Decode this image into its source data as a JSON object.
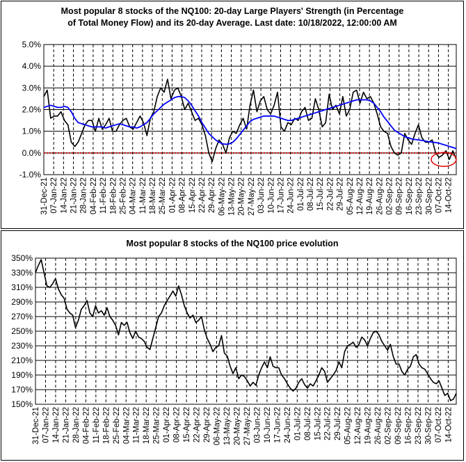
{
  "chart_data": [
    {
      "type": "line",
      "title_line1": "Most popular 8 stocks of the NQ100: 20-day Large Players' Strength (in Percentage",
      "title_line2": "of Total Money Flow) and its 20-day Average. Last date: 10/18/2022, 12:00:00 AM",
      "y_ticks": [
        "5.0%",
        "4.0%",
        "3.0%",
        "2.0%",
        "1.0%",
        "0.0%",
        "-1.0%"
      ],
      "ylim": [
        -1.0,
        5.0
      ],
      "x_ticks": [
        "31-Dec-21",
        "07-Jan-22",
        "14-Jan-22",
        "21-Jan-22",
        "28-Jan-22",
        "04-Feb-22",
        "11-Feb-22",
        "18-Feb-22",
        "25-Feb-22",
        "04-Mar-22",
        "11-Mar-22",
        "18-Mar-22",
        "25-Mar-22",
        "01-Apr-22",
        "08-Apr-22",
        "15-Apr-22",
        "22-Apr-22",
        "29-Apr-22",
        "06-May-22",
        "13-May-22",
        "20-May-22",
        "27-May-22",
        "03-Jun-22",
        "10-Jun-22",
        "17-Jun-22",
        "24-Jun-22",
        "01-Jul-22",
        "08-Jul-22",
        "15-Jul-22",
        "22-Jul-22",
        "29-Jul-22",
        "05-Aug-22",
        "12-Aug-22",
        "19-Aug-22",
        "26-Aug-22",
        "02-Sep-22",
        "09-Sep-22",
        "16-Sep-22",
        "23-Sep-22",
        "30-Sep-22",
        "07-Oct-22",
        "14-Oct-22"
      ],
      "grid": "vertical-dashed, horizontal-solid",
      "highlight_line": {
        "value": 0.0,
        "color": "#cc0000"
      },
      "annotation": {
        "type": "red-ellipse",
        "around": "last values"
      },
      "series": [
        {
          "color": "#000000",
          "values": [
            2.6,
            2.9,
            1.6,
            1.7,
            1.7,
            1.9,
            1.5,
            1.3,
            0.5,
            0.3,
            0.5,
            0.9,
            1.3,
            1.5,
            1.5,
            1.0,
            1.6,
            1.1,
            1.3,
            1.6,
            1.0,
            1.0,
            1.3,
            1.5,
            1.6,
            1.2,
            1.1,
            1.4,
            1.7,
            1.4,
            0.8,
            1.6,
            1.9,
            2.6,
            3.0,
            2.8,
            3.4,
            2.5,
            2.9,
            3.0,
            2.6,
            2.0,
            2.3,
            1.9,
            1.5,
            1.6,
            1.3,
            0.8,
            0.0,
            -0.4,
            0.2,
            0.6,
            0.4,
            0.0,
            0.7,
            1.0,
            0.9,
            1.3,
            1.6,
            1.1,
            2.2,
            2.9,
            1.9,
            2.4,
            2.6,
            2.0,
            1.8,
            2.2,
            2.8,
            1.2,
            1.0,
            1.4,
            1.3,
            1.6,
            1.5,
            1.9,
            2.1,
            1.5,
            1.6,
            2.5,
            2.0,
            1.2,
            1.4,
            2.7,
            2.0,
            2.2,
            1.8,
            2.6,
            1.7,
            2.0,
            2.8,
            2.9,
            2.3,
            2.8,
            2.5,
            2.6,
            2.3,
            1.8,
            1.2,
            1.0,
            0.9,
            0.3,
            0.0,
            -0.1,
            0.0,
            0.9,
            0.6,
            0.4,
            0.9,
            1.3,
            0.7,
            0.5,
            0.5,
            0.6,
            0.0,
            -0.2,
            -0.1,
            0.1,
            -0.3,
            0.1,
            -0.3
          ]
        },
        {
          "color": "#0000ff",
          "values": [
            2.1,
            2.15,
            2.2,
            2.15,
            2.1,
            2.1,
            2.15,
            2.1,
            1.9,
            1.6,
            1.4,
            1.35,
            1.3,
            1.25,
            1.2,
            1.2,
            1.2,
            1.2,
            1.15,
            1.2,
            1.25,
            1.3,
            1.35,
            1.3,
            1.25,
            1.2,
            1.2,
            1.15,
            1.2,
            1.3,
            1.4,
            1.6,
            1.8,
            1.95,
            2.1,
            2.25,
            2.35,
            2.45,
            2.55,
            2.6,
            2.6,
            2.55,
            2.4,
            2.2,
            1.95,
            1.7,
            1.4,
            1.15,
            0.9,
            0.75,
            0.6,
            0.5,
            0.42,
            0.4,
            0.42,
            0.5,
            0.65,
            0.85,
            1.05,
            1.25,
            1.45,
            1.55,
            1.6,
            1.65,
            1.7,
            1.7,
            1.7,
            1.7,
            1.65,
            1.6,
            1.55,
            1.5,
            1.5,
            1.55,
            1.6,
            1.65,
            1.7,
            1.75,
            1.8,
            1.85,
            1.9,
            1.95,
            2.0,
            2.05,
            2.1,
            2.15,
            2.2,
            2.25,
            2.3,
            2.35,
            2.4,
            2.45,
            2.45,
            2.45,
            2.45,
            2.4,
            2.3,
            2.1,
            1.9,
            1.65,
            1.45,
            1.25,
            1.05,
            0.95,
            0.85,
            0.75,
            0.7,
            0.65,
            0.62,
            0.6,
            0.58,
            0.55,
            0.52,
            0.5,
            0.48,
            0.45,
            0.4,
            0.35,
            0.3,
            0.25,
            0.2
          ]
        }
      ]
    },
    {
      "type": "line",
      "title": "Most popular 8 stocks of the NQ100 price evolution",
      "y_ticks": [
        "350%",
        "330%",
        "310%",
        "290%",
        "270%",
        "250%",
        "230%",
        "210%",
        "190%",
        "170%",
        "150%"
      ],
      "ylim": [
        150,
        350
      ],
      "x_ticks": [
        "31-Dec-21",
        "07-Jan-22",
        "14-Jan-22",
        "21-Jan-22",
        "28-Jan-22",
        "04-Feb-22",
        "11-Feb-22",
        "18-Feb-22",
        "25-Feb-22",
        "04-Mar-22",
        "11-Mar-22",
        "18-Mar-22",
        "25-Mar-22",
        "01-Apr-22",
        "08-Apr-22",
        "15-Apr-22",
        "22-Apr-22",
        "29-Apr-22",
        "06-May-22",
        "13-May-22",
        "20-May-22",
        "27-May-22",
        "03-Jun-22",
        "10-Jun-22",
        "17-Jun-22",
        "24-Jun-22",
        "01-Jul-22",
        "08-Jul-22",
        "15-Jul-22",
        "22-Jul-22",
        "29-Jul-22",
        "05-Aug-22",
        "12-Aug-22",
        "19-Aug-22",
        "26-Aug-22",
        "02-Sep-22",
        "09-Sep-22",
        "16-Sep-22",
        "23-Sep-22",
        "30-Sep-22",
        "07-Oct-22",
        "14-Oct-22"
      ],
      "grid": "vertical-dashed, horizontal-solid",
      "series": [
        {
          "color": "#000000",
          "values": [
            330,
            340,
            348,
            330,
            312,
            310,
            315,
            322,
            308,
            300,
            295,
            280,
            275,
            272,
            255,
            265,
            280,
            285,
            292,
            275,
            270,
            285,
            275,
            278,
            272,
            282,
            270,
            265,
            258,
            245,
            262,
            258,
            262,
            248,
            240,
            250,
            242,
            240,
            236,
            228,
            225,
            240,
            255,
            270,
            275,
            285,
            292,
            298,
            305,
            298,
            312,
            300,
            285,
            275,
            268,
            272,
            262,
            265,
            270,
            252,
            240,
            232,
            222,
            228,
            230,
            244,
            220,
            216,
            202,
            192,
            200,
            185,
            190,
            188,
            182,
            175,
            180,
            176,
            190,
            200,
            208,
            200,
            215,
            202,
            200,
            200,
            190,
            185,
            178,
            172,
            168,
            172,
            180,
            185,
            177,
            172,
            178,
            175,
            182,
            190,
            200,
            195,
            180,
            185,
            190,
            196,
            208,
            200,
            222,
            230,
            232,
            235,
            228,
            232,
            242,
            238,
            230,
            240,
            248,
            250,
            245,
            236,
            230,
            224,
            232,
            215,
            205,
            205,
            195,
            190,
            198,
            202,
            215,
            218,
            205,
            200,
            198,
            192,
            185,
            180,
            178,
            182,
            172,
            162,
            165,
            155,
            157,
            165
          ]
        }
      ]
    }
  ]
}
